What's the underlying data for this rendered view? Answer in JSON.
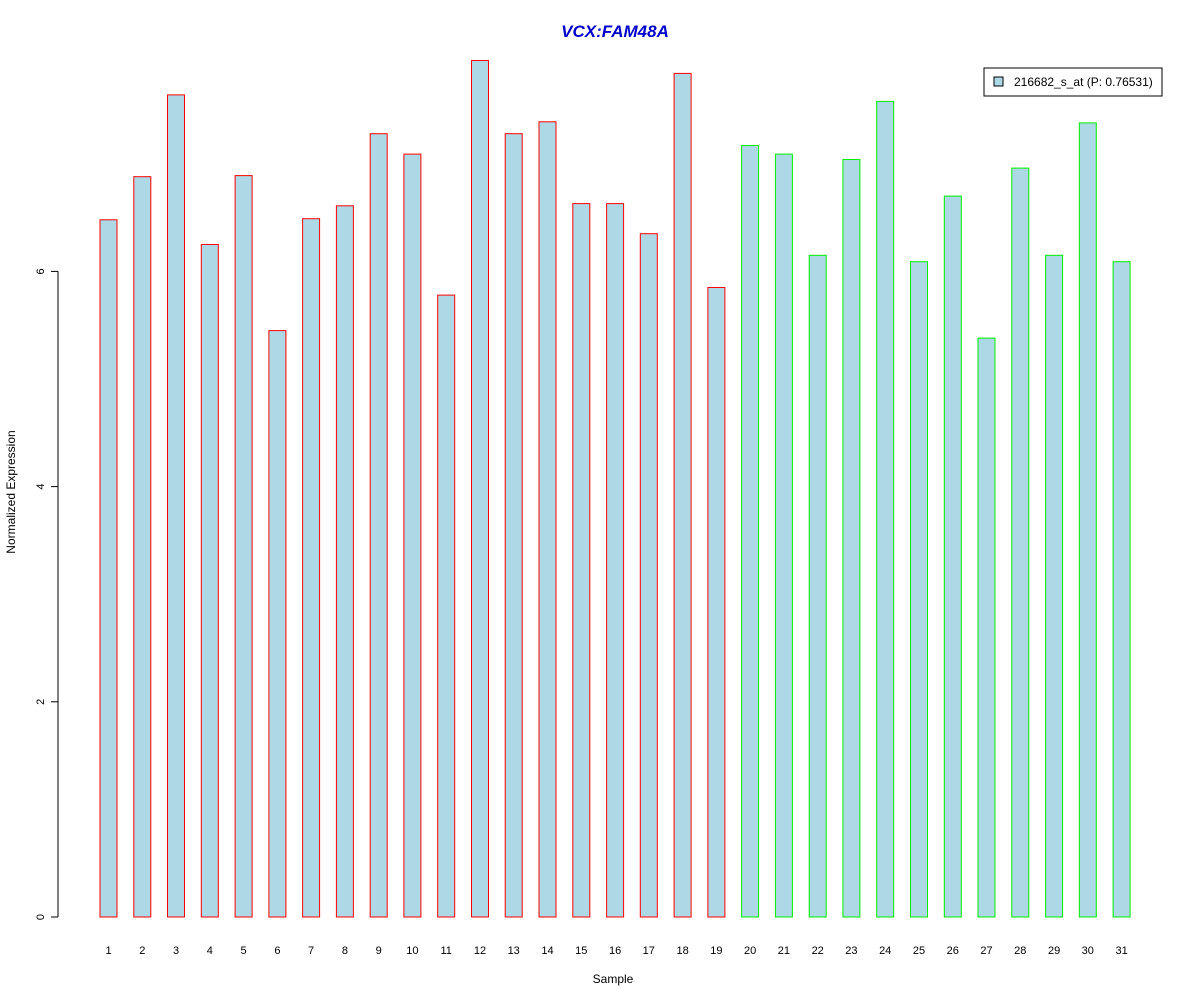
{
  "chart_data": {
    "type": "bar",
    "title": "VCX:FAM48A",
    "xlabel": "Sample",
    "ylabel": "Normalized Expression",
    "ylim": [
      0,
      8
    ],
    "yticks": [
      0,
      2,
      4,
      6
    ],
    "grid": false,
    "legend_position": "top-right",
    "categories": [
      "1",
      "2",
      "3",
      "4",
      "5",
      "6",
      "7",
      "8",
      "9",
      "10",
      "11",
      "12",
      "13",
      "14",
      "15",
      "16",
      "17",
      "18",
      "19",
      "20",
      "21",
      "22",
      "23",
      "24",
      "25",
      "26",
      "27",
      "28",
      "29",
      "30",
      "31"
    ],
    "series": [
      {
        "name": "216682_s_at (P: 0.76531)",
        "values": [
          6.48,
          6.88,
          7.64,
          6.25,
          6.89,
          5.45,
          6.49,
          6.61,
          7.28,
          7.09,
          5.78,
          7.96,
          7.28,
          7.39,
          6.63,
          6.63,
          6.35,
          7.84,
          5.85,
          7.17,
          7.09,
          6.15,
          7.04,
          7.58,
          6.09,
          6.7,
          5.38,
          6.96,
          6.15,
          7.38,
          6.09
        ],
        "groups": [
          1,
          1,
          1,
          1,
          1,
          1,
          1,
          1,
          1,
          1,
          1,
          1,
          1,
          1,
          1,
          1,
          1,
          1,
          1,
          2,
          2,
          2,
          2,
          2,
          2,
          2,
          2,
          2,
          2,
          2,
          2
        ]
      }
    ],
    "colors": {
      "title": "#0000cc",
      "bar_fill": "#add8e6",
      "group1_border": "#ff0000",
      "group2_border": "#00ee00",
      "axis": "#000000"
    }
  }
}
